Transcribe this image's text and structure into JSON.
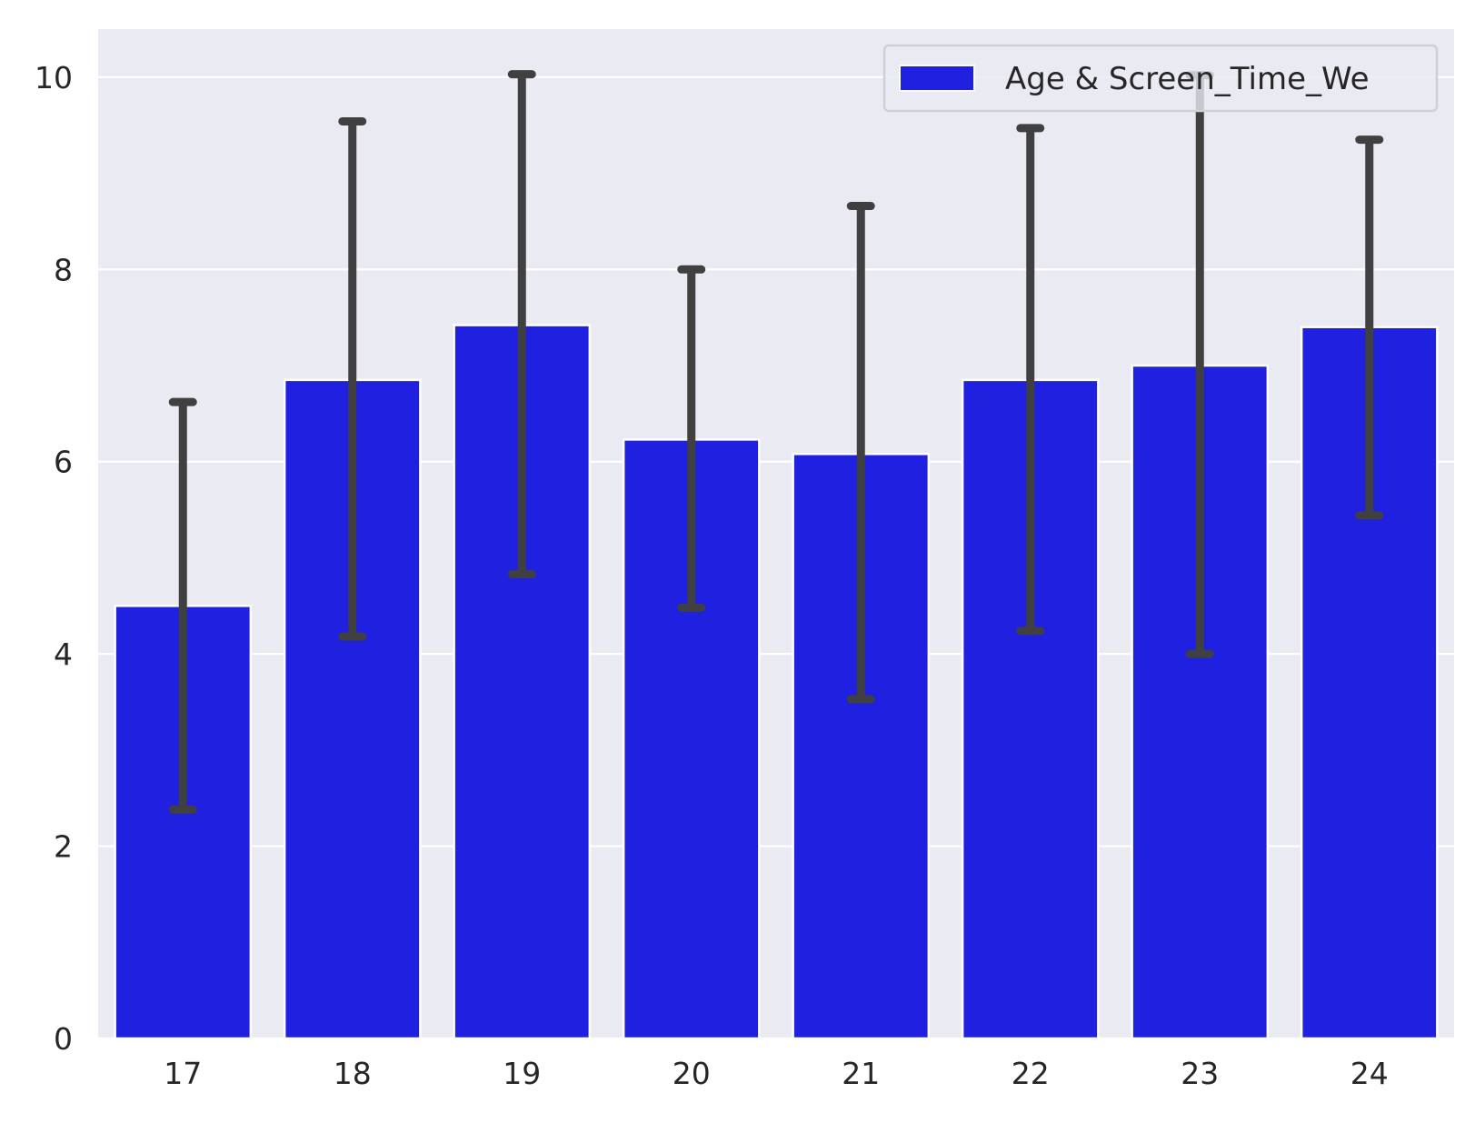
{
  "chart_data": {
    "type": "bar",
    "categories": [
      "17",
      "18",
      "19",
      "20",
      "21",
      "22",
      "23",
      "24"
    ],
    "series": [
      {
        "name": "Age & Screen_Time_We",
        "values": [
          4.5,
          6.85,
          7.42,
          6.23,
          6.08,
          6.85,
          7.0,
          7.4
        ],
        "error_low": [
          2.38,
          4.18,
          4.83,
          4.48,
          3.53,
          4.24,
          4.0,
          5.44
        ],
        "error_high": [
          6.62,
          9.54,
          10.03,
          8.0,
          8.66,
          9.47,
          10.02,
          9.35
        ]
      }
    ],
    "title": "",
    "xlabel": "",
    "ylabel": "",
    "ylim": [
      0,
      10.5
    ],
    "yticks": [
      "0",
      "2",
      "4",
      "6",
      "8",
      "10"
    ],
    "grid": true,
    "legend_position": "top-right",
    "colors": {
      "bar": "#2020e0",
      "error_bar": "#404040",
      "plot_background": "#eaeaf2",
      "grid": "#ffffff",
      "page_background": "#ffffff"
    }
  }
}
